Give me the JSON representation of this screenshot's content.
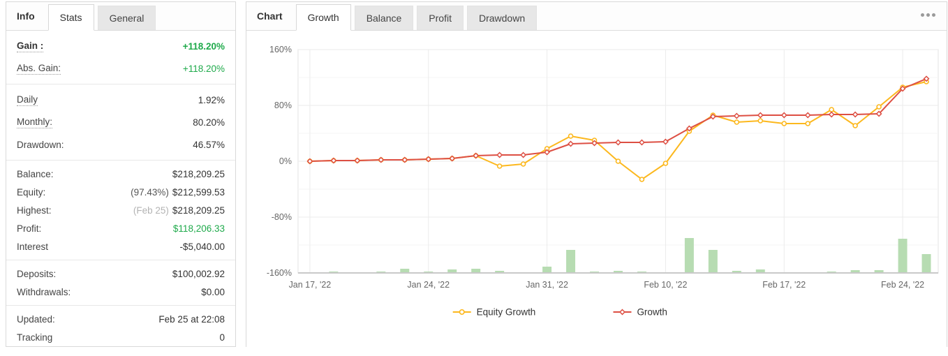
{
  "left_panel": {
    "tabs": [
      {
        "label": "Info",
        "style": "title"
      },
      {
        "label": "Stats",
        "style": "active"
      },
      {
        "label": "General",
        "style": "inactive"
      }
    ],
    "sections": [
      [
        {
          "label": "Gain :",
          "value": "+118.20%",
          "value_color": "green",
          "bold": true,
          "underline": true
        },
        {
          "label": "Abs. Gain:",
          "value": "+118.20%",
          "value_color": "green",
          "underline": true
        }
      ],
      [
        {
          "label": "Daily",
          "value": "1.92%",
          "underline": true
        },
        {
          "label": "Monthly:",
          "value": "80.20%",
          "underline": true
        },
        {
          "label": "Drawdown:",
          "value": "46.57%"
        }
      ],
      [
        {
          "label": "Balance:",
          "value": "$218,209.25"
        },
        {
          "label": "Equity:",
          "prefix": "(97.43%)",
          "value": "$212,599.53"
        },
        {
          "label": "Highest:",
          "prefix": "(Feb 25)",
          "prefix_muted": true,
          "value": "$218,209.25"
        },
        {
          "label": "Profit:",
          "value": "$118,206.33",
          "value_color": "green"
        },
        {
          "label": "Interest",
          "value": "-$5,040.00"
        }
      ],
      [
        {
          "label": "Deposits:",
          "value": "$100,002.92"
        },
        {
          "label": "Withdrawals:",
          "value": "$0.00"
        }
      ],
      [
        {
          "label": "Updated:",
          "value": "Feb 25 at 22:08"
        },
        {
          "label": "Tracking",
          "value": "0"
        }
      ]
    ]
  },
  "right_panel": {
    "tabs": [
      {
        "label": "Chart",
        "style": "title"
      },
      {
        "label": "Growth",
        "style": "active"
      },
      {
        "label": "Balance",
        "style": "inactive"
      },
      {
        "label": "Profit",
        "style": "inactive"
      },
      {
        "label": "Drawdown",
        "style": "inactive"
      }
    ],
    "menu_icon": "ellipsis-icon"
  },
  "chart_data": {
    "type": "line",
    "title": "Growth",
    "ylim": [
      -160,
      160
    ],
    "grid": true,
    "legend_position": "bottom",
    "y_ticks": [
      {
        "value": 160,
        "label": "160%"
      },
      {
        "value": 80,
        "label": "80%"
      },
      {
        "value": 0,
        "label": "0%"
      },
      {
        "value": -80,
        "label": "-80%"
      },
      {
        "value": -160,
        "label": "-160%"
      }
    ],
    "y_minor_ticks": [
      120,
      40,
      -40,
      -120
    ],
    "x_tick_labels": [
      "Jan 17, '22",
      "Jan 24, '22",
      "Jan 31, '22",
      "Feb 10, '22",
      "Feb 17, '22",
      "Feb 24, '22"
    ],
    "x_tick_indices": [
      0,
      5,
      10,
      15,
      20,
      25
    ],
    "series": [
      {
        "name": "Equity Growth",
        "marker": "circle",
        "color": "#fcb81e",
        "values": [
          0,
          1,
          1,
          2,
          2,
          3,
          4,
          8,
          -7,
          -4,
          18,
          36,
          30,
          0,
          -26,
          -3,
          43,
          66,
          56,
          58,
          54,
          54,
          74,
          51,
          78,
          106,
          114
        ]
      },
      {
        "name": "Growth",
        "marker": "diamond",
        "color": "#dd4f43",
        "values": [
          0,
          1,
          1,
          2,
          2,
          3,
          4,
          8,
          9,
          9,
          13,
          25,
          26,
          27,
          27,
          28,
          47,
          64,
          65,
          66,
          66,
          66,
          67,
          67,
          68,
          104,
          118.2
        ]
      }
    ],
    "bars": {
      "color": "#b7dcb2",
      "baseline": -160,
      "heights_pct": [
        0,
        2,
        0,
        2,
        6,
        2,
        5,
        6,
        3,
        0,
        9,
        33,
        2,
        3,
        2,
        0,
        50,
        33,
        3,
        5,
        0,
        0,
        2,
        4,
        4,
        49,
        27
      ]
    }
  },
  "colors": {
    "positive_green": "#1faa4b",
    "equity_line": "#fcb81e",
    "growth_line": "#dd4f43",
    "volume_bar": "#b7dcb2",
    "grid_major": "#ebebeb",
    "grid_minor": "#f5f5f5",
    "axis_text": "#666666"
  }
}
